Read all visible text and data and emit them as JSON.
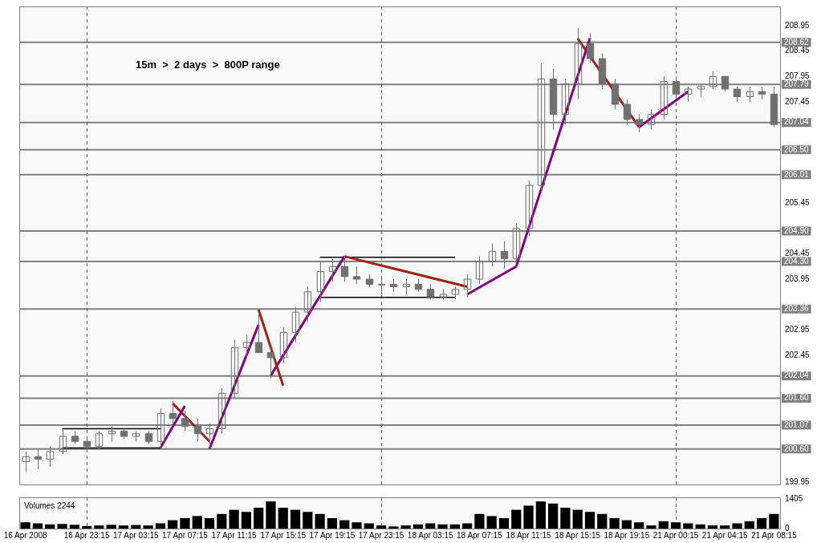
{
  "chart_data": [
    {
      "type": "candlestick",
      "annotations": [
        "15m  >  2 days  >  800P range"
      ],
      "categories": [
        "16 Apr 2008",
        null,
        null,
        null,
        null,
        "16 Apr 23:15",
        null,
        null,
        null,
        "17 Apr 03:15",
        null,
        null,
        null,
        "17 Apr 07:15",
        null,
        null,
        null,
        "17 Apr 11:15",
        null,
        null,
        null,
        "17 Apr 15:15",
        null,
        null,
        null,
        "17 Apr 19:15",
        null,
        null,
        null,
        "17 Apr 23:15",
        null,
        null,
        null,
        "18 Apr 03:15",
        null,
        null,
        null,
        "18 Apr 07:15",
        null,
        null,
        null,
        "18 Apr 11:15",
        null,
        null,
        null,
        "18 Apr 15:15",
        null,
        null,
        null,
        "18 Apr 19:15",
        null,
        null,
        null,
        "21 Apr 00:15",
        null,
        null,
        null,
        "21 Apr 04:15",
        null,
        null,
        null,
        "21 Apr 08:15"
      ],
      "ohlc": [
        [
          200.35,
          200.55,
          200.15,
          200.45
        ],
        [
          200.45,
          200.6,
          200.2,
          200.4
        ],
        [
          200.4,
          200.65,
          200.25,
          200.55
        ],
        [
          200.55,
          201.0,
          200.5,
          200.85
        ],
        [
          200.85,
          200.95,
          200.7,
          200.75
        ],
        [
          200.75,
          200.8,
          200.55,
          200.65
        ],
        [
          200.65,
          200.95,
          200.6,
          200.9
        ],
        [
          200.9,
          201.05,
          200.75,
          200.95
        ],
        [
          200.95,
          201.0,
          200.8,
          200.85
        ],
        [
          200.85,
          200.95,
          200.75,
          200.9
        ],
        [
          200.9,
          200.95,
          200.7,
          200.75
        ],
        [
          200.75,
          201.4,
          200.6,
          201.3
        ],
        [
          201.3,
          201.55,
          201.1,
          201.2
        ],
        [
          201.2,
          201.35,
          200.95,
          201.05
        ],
        [
          201.05,
          201.2,
          200.75,
          200.9
        ],
        [
          200.9,
          201.1,
          200.6,
          201.0
        ],
        [
          201.0,
          201.8,
          200.9,
          201.7
        ],
        [
          201.7,
          202.75,
          201.6,
          202.6
        ],
        [
          202.6,
          202.85,
          202.4,
          202.7
        ],
        [
          202.7,
          203.3,
          202.5,
          202.5
        ],
        [
          202.5,
          202.6,
          202.0,
          202.4
        ],
        [
          202.4,
          203.0,
          202.3,
          202.9
        ],
        [
          202.9,
          203.4,
          202.7,
          203.3
        ],
        [
          203.3,
          203.8,
          203.1,
          203.7
        ],
        [
          203.7,
          204.3,
          203.5,
          204.1
        ],
        [
          204.1,
          204.35,
          203.9,
          204.2
        ],
        [
          204.2,
          204.4,
          203.9,
          204.0
        ],
        [
          204.0,
          204.2,
          203.85,
          203.95
        ],
        [
          203.95,
          204.05,
          203.8,
          203.85
        ],
        [
          203.85,
          203.95,
          203.65,
          203.85
        ],
        [
          203.85,
          203.95,
          203.7,
          203.8
        ],
        [
          203.8,
          203.95,
          203.65,
          203.85
        ],
        [
          203.85,
          203.95,
          203.7,
          203.75
        ],
        [
          203.75,
          203.85,
          203.55,
          203.6
        ],
        [
          203.6,
          203.75,
          203.55,
          203.65
        ],
        [
          203.65,
          203.8,
          203.55,
          203.75
        ],
        [
          203.75,
          204.05,
          203.6,
          203.95
        ],
        [
          203.95,
          204.4,
          203.85,
          204.3
        ],
        [
          204.3,
          204.65,
          204.2,
          204.5
        ],
        [
          204.5,
          204.7,
          204.15,
          204.35
        ],
        [
          204.35,
          205.05,
          204.3,
          204.95
        ],
        [
          204.95,
          205.9,
          204.8,
          205.8
        ],
        [
          205.8,
          208.2,
          205.7,
          207.9
        ],
        [
          207.9,
          208.1,
          206.9,
          207.2
        ],
        [
          207.2,
          207.9,
          207.0,
          207.8
        ],
        [
          207.8,
          208.9,
          207.5,
          208.6
        ],
        [
          208.6,
          208.8,
          208.2,
          208.3
        ],
        [
          208.3,
          208.4,
          207.7,
          207.8
        ],
        [
          207.8,
          207.9,
          207.3,
          207.4
        ],
        [
          207.4,
          207.5,
          207.0,
          207.1
        ],
        [
          207.1,
          207.2,
          206.85,
          207.0
        ],
        [
          207.0,
          207.3,
          206.9,
          207.2
        ],
        [
          207.2,
          207.95,
          207.1,
          207.85
        ],
        [
          207.85,
          207.95,
          207.5,
          207.6
        ],
        [
          207.6,
          207.75,
          207.45,
          207.7
        ],
        [
          207.7,
          207.8,
          207.55,
          207.75
        ],
        [
          207.75,
          208.05,
          207.7,
          207.95
        ],
        [
          207.95,
          207.95,
          207.65,
          207.7
        ],
        [
          207.7,
          207.75,
          207.45,
          207.55
        ],
        [
          207.55,
          207.75,
          207.45,
          207.65
        ],
        [
          207.65,
          207.75,
          207.5,
          207.6
        ],
        [
          207.6,
          207.75,
          206.95,
          207.0
        ]
      ],
      "color": "#707070",
      "series": [
        {
          "type": "line",
          "color": "#800080",
          "values": [
            null,
            null,
            null,
            null,
            null,
            null,
            null,
            null,
            null,
            null,
            null,
            200.62,
            null,
            201.45,
            null,
            null,
            null,
            null,
            null,
            null,
            null,
            null,
            null,
            null,
            null,
            null,
            null,
            null,
            null,
            null,
            null,
            null,
            null,
            null,
            null,
            null,
            null,
            null,
            null,
            null,
            null,
            null,
            null,
            null,
            null,
            null,
            null,
            null,
            null,
            null,
            null,
            null,
            null,
            null,
            null,
            null,
            null,
            null,
            null,
            null,
            null,
            null
          ]
        },
        {
          "type": "line",
          "color": "#a0201a",
          "values": [
            null,
            null,
            null,
            null,
            null,
            null,
            null,
            null,
            null,
            null,
            null,
            null,
            201.5,
            null,
            null,
            200.75,
            null,
            null,
            null,
            null,
            null,
            null,
            null,
            null,
            null,
            null,
            null,
            null,
            null,
            null,
            null,
            null,
            null,
            null,
            null,
            null,
            null,
            null,
            null,
            null,
            null,
            null,
            null,
            null,
            null,
            null,
            null,
            null,
            null,
            null,
            null,
            null,
            null,
            null,
            null,
            null,
            null,
            null,
            null,
            null,
            null,
            null
          ]
        },
        {
          "type": "line",
          "color": "#800080",
          "values": [
            null,
            null,
            null,
            null,
            null,
            null,
            null,
            null,
            null,
            null,
            null,
            null,
            null,
            null,
            null,
            200.6,
            null,
            null,
            null,
            203.05,
            null,
            null,
            null,
            null,
            null,
            null,
            null,
            null,
            null,
            null,
            null,
            null,
            null,
            null,
            null,
            null,
            null,
            null,
            null,
            null,
            null,
            null,
            null,
            null,
            null,
            null,
            null,
            null,
            null,
            null,
            null,
            null,
            null,
            null,
            null,
            null,
            null,
            null,
            null,
            null,
            null,
            null
          ]
        },
        {
          "type": "line",
          "color": "#a0201a",
          "values": [
            null,
            null,
            null,
            null,
            null,
            null,
            null,
            null,
            null,
            null,
            null,
            null,
            null,
            null,
            null,
            null,
            null,
            null,
            null,
            203.35,
            null,
            201.85,
            null,
            null,
            null,
            null,
            null,
            null,
            null,
            null,
            null,
            null,
            null,
            null,
            null,
            null,
            null,
            null,
            null,
            null,
            null,
            null,
            null,
            null,
            null,
            null,
            null,
            null,
            null,
            null,
            null,
            null,
            null,
            null,
            null,
            null,
            null,
            null,
            null,
            null,
            null,
            null
          ]
        },
        {
          "type": "line",
          "color": "#800080",
          "values": [
            null,
            null,
            null,
            null,
            null,
            null,
            null,
            null,
            null,
            null,
            null,
            null,
            null,
            null,
            null,
            null,
            null,
            null,
            null,
            null,
            202.05,
            null,
            null,
            null,
            null,
            null,
            204.4,
            null,
            null,
            null,
            null,
            null,
            null,
            null,
            null,
            null,
            null,
            null,
            null,
            null,
            null,
            null,
            null,
            null,
            null,
            null,
            null,
            null,
            null,
            null,
            null,
            null,
            null,
            null,
            null,
            null,
            null,
            null,
            null,
            null,
            null,
            null
          ]
        },
        {
          "type": "line",
          "color": "#a0201a",
          "values": [
            null,
            null,
            null,
            null,
            null,
            null,
            null,
            null,
            null,
            null,
            null,
            null,
            null,
            null,
            null,
            null,
            null,
            null,
            null,
            null,
            null,
            null,
            null,
            null,
            null,
            null,
            204.4,
            null,
            null,
            null,
            null,
            null,
            null,
            null,
            null,
            null,
            203.8,
            null,
            null,
            null,
            null,
            null,
            null,
            null,
            null,
            null,
            null,
            null,
            null,
            null,
            null,
            null,
            null,
            null,
            null,
            null,
            null,
            null,
            null,
            null,
            null,
            null
          ]
        },
        {
          "type": "line",
          "color": "#800080",
          "values": [
            null,
            null,
            null,
            null,
            null,
            null,
            null,
            null,
            null,
            null,
            null,
            null,
            null,
            null,
            null,
            null,
            null,
            null,
            null,
            null,
            null,
            null,
            null,
            null,
            null,
            null,
            null,
            null,
            null,
            null,
            null,
            null,
            null,
            null,
            null,
            null,
            203.65,
            null,
            null,
            null,
            204.2,
            null,
            null,
            null,
            null,
            null,
            null,
            null,
            null,
            null,
            null,
            null,
            null,
            null,
            null,
            null,
            null,
            null,
            null,
            null,
            null,
            null
          ]
        },
        {
          "type": "line",
          "color": "#800080",
          "values": [
            null,
            null,
            null,
            null,
            null,
            null,
            null,
            null,
            null,
            null,
            null,
            null,
            null,
            null,
            null,
            null,
            null,
            null,
            null,
            null,
            null,
            null,
            null,
            null,
            null,
            null,
            null,
            null,
            null,
            null,
            null,
            null,
            null,
            null,
            null,
            null,
            null,
            null,
            null,
            null,
            204.2,
            null,
            null,
            null,
            null,
            null,
            208.7,
            null,
            null,
            null,
            null,
            null,
            null,
            null,
            null,
            null,
            null,
            null,
            null,
            null,
            null,
            null
          ]
        },
        {
          "type": "line",
          "color": "#a0201a",
          "values": [
            null,
            null,
            null,
            null,
            null,
            null,
            null,
            null,
            null,
            null,
            null,
            null,
            null,
            null,
            null,
            null,
            null,
            null,
            null,
            null,
            null,
            null,
            null,
            null,
            null,
            null,
            null,
            null,
            null,
            null,
            null,
            null,
            null,
            null,
            null,
            null,
            null,
            null,
            null,
            null,
            null,
            null,
            null,
            null,
            null,
            208.7,
            null,
            null,
            null,
            null,
            206.95,
            null,
            null,
            null,
            null,
            null,
            null,
            null,
            null,
            null,
            null,
            null
          ]
        },
        {
          "type": "line",
          "color": "#800080",
          "values": [
            null,
            null,
            null,
            null,
            null,
            null,
            null,
            null,
            null,
            null,
            null,
            null,
            null,
            null,
            null,
            null,
            null,
            null,
            null,
            null,
            null,
            null,
            null,
            null,
            null,
            null,
            null,
            null,
            null,
            null,
            null,
            null,
            null,
            null,
            null,
            null,
            null,
            null,
            null,
            null,
            null,
            null,
            null,
            null,
            null,
            null,
            null,
            null,
            null,
            null,
            206.95,
            null,
            null,
            null,
            207.65,
            null,
            null,
            null,
            null,
            null,
            null,
            null
          ]
        },
        {
          "type": "line",
          "color": "#000000",
          "values": [
            null,
            null,
            null,
            201.0,
            null,
            null,
            null,
            null,
            null,
            null,
            null,
            201.0,
            null,
            null,
            null,
            null,
            null,
            null,
            null,
            null,
            null,
            null,
            null,
            null,
            null,
            null,
            null,
            null,
            null,
            null,
            null,
            null,
            null,
            null,
            null,
            null,
            null,
            null,
            null,
            null,
            null,
            null,
            null,
            null,
            null,
            null,
            null,
            null,
            null,
            null,
            null,
            null,
            null,
            null,
            null,
            null,
            null,
            null,
            null,
            null,
            null,
            null
          ]
        },
        {
          "type": "line",
          "color": "#000000",
          "values": [
            null,
            null,
            null,
            200.62,
            null,
            null,
            null,
            null,
            null,
            null,
            null,
            200.62,
            null,
            null,
            null,
            null,
            null,
            null,
            null,
            null,
            null,
            null,
            null,
            null,
            null,
            null,
            null,
            null,
            null,
            null,
            null,
            null,
            null,
            null,
            null,
            null,
            null,
            null,
            null,
            null,
            null,
            null,
            null,
            null,
            null,
            null,
            null,
            null,
            null,
            null,
            null,
            null,
            null,
            null,
            null,
            null,
            null,
            null,
            null,
            null,
            null,
            null
          ]
        },
        {
          "type": "line",
          "color": "#000000",
          "values": [
            null,
            null,
            null,
            null,
            null,
            null,
            null,
            null,
            null,
            null,
            null,
            null,
            null,
            null,
            null,
            null,
            null,
            null,
            null,
            null,
            null,
            null,
            null,
            null,
            204.38,
            null,
            null,
            null,
            null,
            null,
            null,
            null,
            null,
            null,
            null,
            204.38,
            null,
            null,
            null,
            null,
            null,
            null,
            null,
            null,
            null,
            null,
            null,
            null,
            null,
            null,
            null,
            null,
            null,
            null,
            null,
            null,
            null,
            null,
            null,
            null,
            null,
            null
          ]
        },
        {
          "type": "line",
          "color": "#000000",
          "values": [
            null,
            null,
            null,
            null,
            null,
            null,
            null,
            null,
            null,
            null,
            null,
            null,
            null,
            null,
            null,
            null,
            null,
            null,
            null,
            null,
            null,
            null,
            null,
            null,
            203.59,
            null,
            null,
            null,
            null,
            null,
            null,
            null,
            null,
            null,
            null,
            203.59,
            null,
            null,
            null,
            null,
            null,
            null,
            null,
            null,
            null,
            null,
            null,
            null,
            null,
            null,
            null,
            null,
            null,
            null,
            null,
            null,
            null,
            null,
            null,
            null,
            null,
            null
          ]
        }
      ],
      "ylim": [
        199.9,
        209.33
      ],
      "yticks": [
        199.95,
        202.45,
        202.95,
        203.95,
        204.45,
        205.45,
        207.45,
        207.95,
        208.45,
        208.95
      ],
      "ref_lines": [
        {
          "axis": "y",
          "value": 208.62,
          "label": "208.62",
          "color": "#808080"
        },
        {
          "axis": "y",
          "value": 207.79,
          "label": "207.79",
          "color": "#808080"
        },
        {
          "axis": "y",
          "value": 207.04,
          "label": "207.04",
          "color": "#808080"
        },
        {
          "axis": "y",
          "value": 206.5,
          "label": "206.50",
          "color": "#808080"
        },
        {
          "axis": "y",
          "value": 206.01,
          "label": "206.01",
          "color": "#808080"
        },
        {
          "axis": "y",
          "value": 204.9,
          "label": "204.90",
          "color": "#808080"
        },
        {
          "axis": "y",
          "value": 204.3,
          "label": "204.30",
          "color": "#808080"
        },
        {
          "axis": "y",
          "value": 203.36,
          "label": "203.36",
          "color": "#808080"
        },
        {
          "axis": "y",
          "value": 202.04,
          "label": "202.04",
          "color": "#808080"
        },
        {
          "axis": "y",
          "value": 201.6,
          "label": "201.60",
          "color": "#808080"
        },
        {
          "axis": "y",
          "value": 201.07,
          "label": "201.07",
          "color": "#808080"
        },
        {
          "axis": "y",
          "value": 200.6,
          "label": "200.60",
          "color": "#808080"
        },
        {
          "axis": "x",
          "value": "16 Apr 23:15",
          "color": "#555555",
          "line_style": "dashed"
        },
        {
          "axis": "x",
          "value": "17 Apr 23:15",
          "color": "#555555",
          "line_style": "dashed"
        },
        {
          "axis": "x",
          "value": "21 Apr 00:15",
          "color": "#555555",
          "line_style": "dashed"
        }
      ],
      "tick_labels": "y"
    },
    {
      "type": "bar",
      "annotations": [
        "Volumes 2244"
      ],
      "categories": [
        "16 Apr 2008",
        null,
        null,
        null,
        null,
        "16 Apr 23:15",
        null,
        null,
        null,
        "17 Apr 03:15",
        null,
        null,
        null,
        "17 Apr 07:15",
        null,
        null,
        null,
        "17 Apr 11:15",
        null,
        null,
        null,
        "17 Apr 15:15",
        null,
        null,
        null,
        "17 Apr 19:15",
        null,
        null,
        null,
        "17 Apr 23:15",
        null,
        null,
        null,
        "18 Apr 03:15",
        null,
        null,
        null,
        "18 Apr 07:15",
        null,
        null,
        null,
        "18 Apr 11:15",
        null,
        null,
        null,
        "18 Apr 15:15",
        null,
        null,
        null,
        "18 Apr 19:15",
        null,
        null,
        null,
        "21 Apr 00:15",
        null,
        null,
        null,
        "21 Apr 04:15",
        null,
        null,
        null,
        "21 Apr 08:15"
      ],
      "values": [
        300,
        250,
        200,
        220,
        180,
        120,
        150,
        180,
        150,
        170,
        150,
        250,
        400,
        500,
        600,
        500,
        700,
        900,
        800,
        1000,
        1300,
        1000,
        900,
        800,
        700,
        500,
        400,
        300,
        250,
        150,
        100,
        150,
        200,
        250,
        200,
        200,
        250,
        700,
        600,
        500,
        900,
        1100,
        1300,
        1200,
        1000,
        900,
        800,
        700,
        500,
        400,
        300,
        150,
        350,
        300,
        250,
        200,
        150,
        150,
        250,
        350,
        500,
        700
      ],
      "color": "#000000",
      "ylim": [
        0,
        1500
      ],
      "yticks": [
        0,
        1405
      ],
      "ref_lines": [
        {
          "axis": "x",
          "value": "16 Apr 23:15",
          "color": "#555555",
          "line_style": "dashed"
        },
        {
          "axis": "x",
          "value": "17 Apr 23:15",
          "color": "#555555",
          "line_style": "dashed"
        },
        {
          "axis": "x",
          "value": "21 Apr 00:15",
          "color": "#555555",
          "line_style": "dashed"
        }
      ]
    }
  ]
}
